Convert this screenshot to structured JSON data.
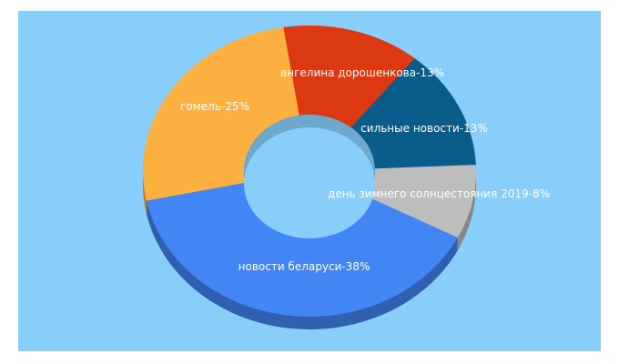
{
  "chart_data": {
    "type": "pie",
    "style": "3d-donut",
    "background_color": "#87cefa",
    "slices": [
      {
        "label": "ангелина дорошенкова-13%",
        "value": 13,
        "color": "#dc3912"
      },
      {
        "label": "сильные новости-13%",
        "value": 13,
        "color": "#0a5c8a"
      },
      {
        "label": "день зимнего солнцестояния 2019-8%",
        "value": 8,
        "color": "#bdbdbd"
      },
      {
        "label": "новости беларуси-38%",
        "value": 38,
        "color": "#4285f4"
      },
      {
        "label": "гомель-25%",
        "value": 25,
        "color": "#fbb040"
      }
    ]
  }
}
